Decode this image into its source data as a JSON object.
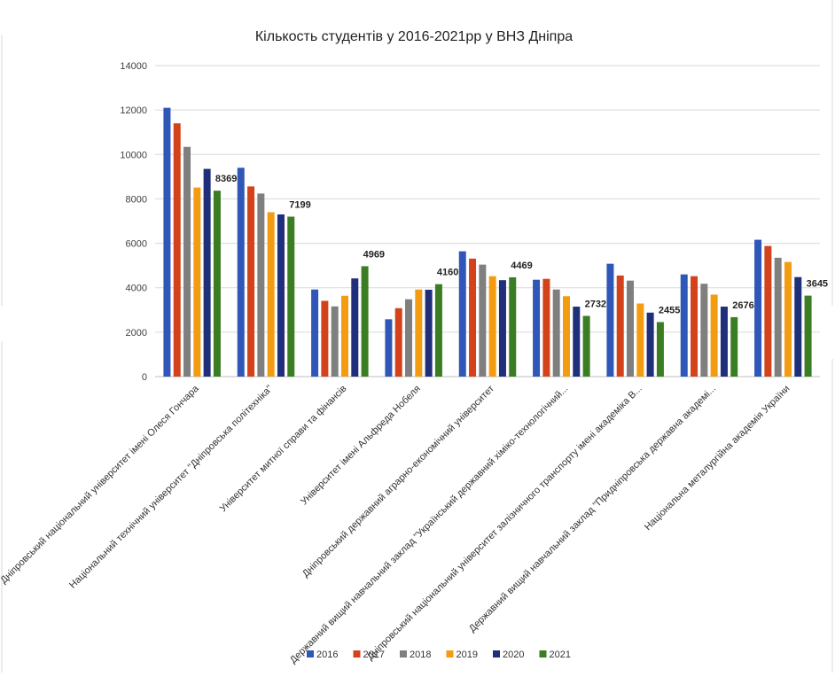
{
  "chart_data": {
    "type": "bar",
    "title": "Кількость студентів у 2016-2021рр у ВНЗ Дніпра",
    "xlabel": "",
    "ylabel": "",
    "ylim": [
      0,
      14000
    ],
    "yticks": [
      "0",
      "2000",
      "4000",
      "6000",
      "8000",
      "10000",
      "12000",
      "14000"
    ],
    "grid": true,
    "legend_position": "bottom",
    "categories": [
      "Дніпровський національний університет імені Олеся Гончара",
      "Національний технічний університет \"Дніпровська політехніка\"",
      "Університет митної справи та фінансів",
      "Університет імені Альфреда Нобеля",
      "Дніпровський державний аграрно-економічний університет",
      "Державний вищий навчальний заклад \"Український державний хіміко-технологічний...",
      "Дніпровський національний університет залізничного транспорту імені академіка В...",
      "Державний вищий навчальний заклад \"Придніпровська державна академі...",
      "Національна металургійна академія України"
    ],
    "series": [
      {
        "name": "2016",
        "color": "#2e57b8",
        "values": [
          12100,
          9400,
          3920,
          2580,
          5640,
          4360,
          5080,
          4600,
          6160
        ]
      },
      {
        "name": "2017",
        "color": "#d4421b",
        "values": [
          11400,
          8560,
          3410,
          3080,
          5310,
          4400,
          4550,
          4520,
          5880
        ]
      },
      {
        "name": "2018",
        "color": "#7f7f7f",
        "values": [
          10340,
          8240,
          3160,
          3480,
          5040,
          3920,
          4320,
          4180,
          5350
        ]
      },
      {
        "name": "2019",
        "color": "#f39c12",
        "values": [
          8510,
          7400,
          3640,
          3920,
          4520,
          3620,
          3290,
          3690,
          5160
        ]
      },
      {
        "name": "2020",
        "color": "#1f2f7a",
        "values": [
          9350,
          7300,
          4420,
          3910,
          4340,
          3150,
          2880,
          3150,
          4480
        ]
      },
      {
        "name": "2021",
        "color": "#3a7d22",
        "values": [
          8369,
          7199,
          4969,
          4160,
          4469,
          2732,
          2455,
          2676,
          3645
        ]
      }
    ],
    "data_labels": [
      {
        "category_index": 0,
        "series_index": 5,
        "text": "8369"
      },
      {
        "category_index": 1,
        "series_index": 5,
        "text": "7199"
      },
      {
        "category_index": 2,
        "series_index": 5,
        "text": "4969"
      },
      {
        "category_index": 3,
        "series_index": 5,
        "text": "4160"
      },
      {
        "category_index": 4,
        "series_index": 5,
        "text": "4469"
      },
      {
        "category_index": 5,
        "series_index": 5,
        "text": "2732"
      },
      {
        "category_index": 6,
        "series_index": 5,
        "text": "2455"
      },
      {
        "category_index": 7,
        "series_index": 5,
        "text": "2676"
      },
      {
        "category_index": 8,
        "series_index": 5,
        "text": "3645"
      }
    ]
  }
}
